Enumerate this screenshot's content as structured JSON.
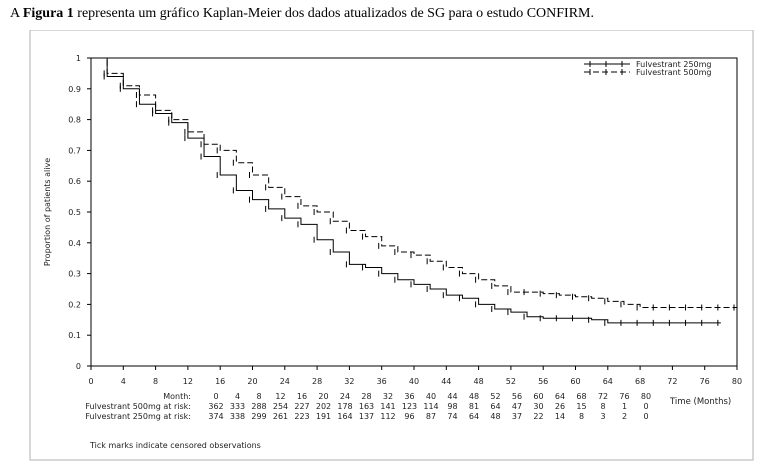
{
  "intro": {
    "prefix": "A ",
    "bold": "Figura 1",
    "suffix": " representa um gráfico Kaplan-Meier dos dados atualizados de SG para o estudo CONFIRM."
  },
  "chart_data": {
    "type": "line",
    "title": "",
    "xlabel": "Time (Months)",
    "ylabel": "Proportion of patients alive",
    "xlim": [
      0,
      80
    ],
    "ylim": [
      0,
      1
    ],
    "x_ticks": [
      0,
      4,
      8,
      12,
      16,
      20,
      24,
      28,
      32,
      36,
      40,
      44,
      48,
      52,
      56,
      60,
      64,
      68,
      72,
      76,
      80
    ],
    "y_ticks": [
      0,
      0.1,
      0.2,
      0.3,
      0.4,
      0.5,
      0.6,
      0.7,
      0.8,
      0.9,
      1
    ],
    "y_tick_labels": [
      "0",
      "0.1",
      "0.2",
      "0.3",
      "0.4",
      "0.5",
      "0.6",
      "0.7",
      "0.8",
      "0.9",
      "1"
    ],
    "grid": false,
    "legend_position": "top-right",
    "series": [
      {
        "name": "Fulvestrant 250mg",
        "style": "solid",
        "x": [
          0,
          2,
          4,
          6,
          8,
          10,
          12,
          14,
          16,
          18,
          20,
          22,
          24,
          26,
          28,
          30,
          32,
          34,
          36,
          38,
          40,
          42,
          44,
          46,
          48,
          50,
          52,
          54,
          56,
          58,
          60,
          62,
          64,
          66,
          68,
          70,
          72,
          74,
          76,
          78
        ],
        "y": [
          1.0,
          0.94,
          0.9,
          0.85,
          0.82,
          0.79,
          0.74,
          0.68,
          0.62,
          0.57,
          0.54,
          0.51,
          0.48,
          0.46,
          0.41,
          0.37,
          0.33,
          0.32,
          0.3,
          0.28,
          0.265,
          0.25,
          0.23,
          0.22,
          0.2,
          0.185,
          0.175,
          0.16,
          0.155,
          0.155,
          0.155,
          0.15,
          0.14,
          0.14,
          0.14,
          0.14,
          0.14,
          0.14,
          0.14,
          0.14
        ]
      },
      {
        "name": "Fulvestrant 500mg",
        "style": "dashed",
        "x": [
          0,
          2,
          4,
          6,
          8,
          10,
          12,
          14,
          16,
          18,
          20,
          22,
          24,
          26,
          28,
          30,
          32,
          34,
          36,
          38,
          40,
          42,
          44,
          46,
          48,
          50,
          52,
          54,
          56,
          58,
          60,
          62,
          64,
          66,
          68,
          70,
          72,
          74,
          76,
          78,
          80
        ],
        "y": [
          1.0,
          0.95,
          0.91,
          0.88,
          0.83,
          0.8,
          0.76,
          0.72,
          0.7,
          0.66,
          0.62,
          0.58,
          0.55,
          0.52,
          0.5,
          0.47,
          0.44,
          0.42,
          0.39,
          0.37,
          0.36,
          0.34,
          0.32,
          0.3,
          0.28,
          0.26,
          0.24,
          0.24,
          0.235,
          0.23,
          0.225,
          0.22,
          0.21,
          0.2,
          0.19,
          0.19,
          0.19,
          0.19,
          0.19,
          0.19,
          0.19
        ]
      }
    ],
    "risk_table": {
      "header_label": "Month:",
      "months": [
        "0",
        "4",
        "8",
        "12",
        "16",
        "20",
        "24",
        "28",
        "32",
        "36",
        "40",
        "44",
        "48",
        "52",
        "56",
        "60",
        "64",
        "68",
        "72",
        "76",
        "80"
      ],
      "rows": [
        {
          "label": "Fulvestrant 500mg at risk:",
          "values": [
            "362",
            "333",
            "288",
            "254",
            "227",
            "202",
            "178",
            "163",
            "141",
            "123",
            "114",
            "98",
            "81",
            "64",
            "47",
            "30",
            "26",
            "15",
            "8",
            "1",
            "0"
          ]
        },
        {
          "label": "Fulvestrant 250mg at risk:",
          "values": [
            "374",
            "338",
            "299",
            "261",
            "223",
            "191",
            "164",
            "137",
            "112",
            "96",
            "87",
            "74",
            "64",
            "48",
            "37",
            "22",
            "14",
            "8",
            "3",
            "2",
            "0"
          ]
        }
      ]
    },
    "footnote": "Tick marks indicate censored observations"
  }
}
